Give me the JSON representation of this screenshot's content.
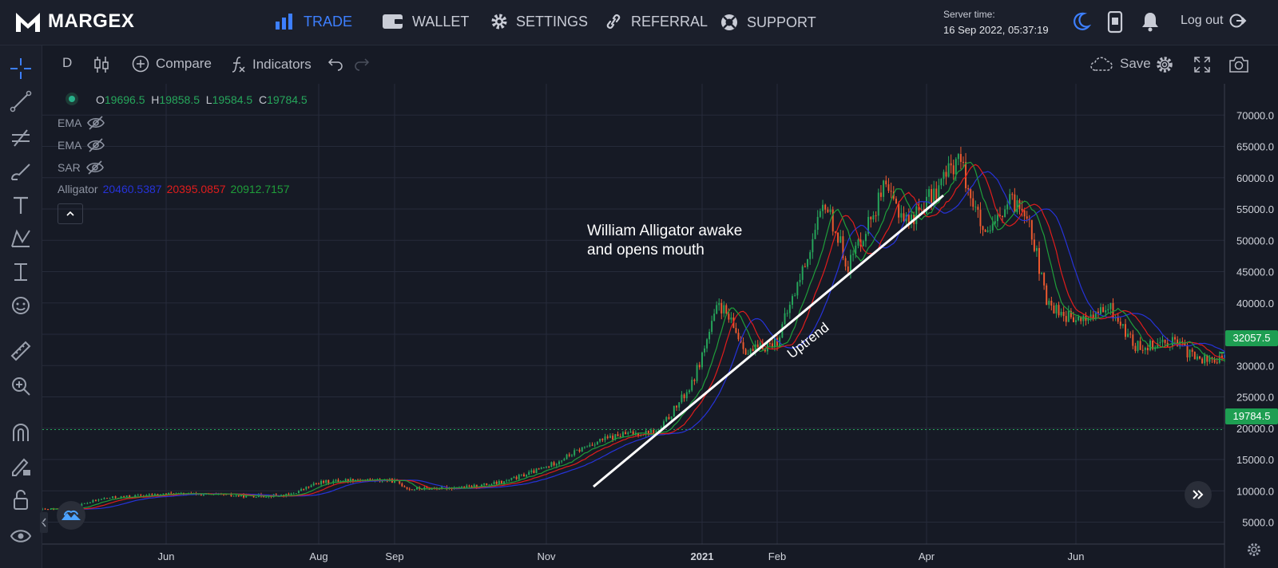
{
  "app": {
    "brand": "MARGEX"
  },
  "nav": [
    {
      "label": "TRADE",
      "icon": "bar-chart-icon",
      "active": true
    },
    {
      "label": "WALLET",
      "icon": "wallet-icon"
    },
    {
      "label": "SETTINGS",
      "icon": "gear-icon"
    },
    {
      "label": "REFERRAL",
      "icon": "link-icon"
    },
    {
      "label": "SUPPORT",
      "icon": "lifebuoy-icon"
    }
  ],
  "server": {
    "label": "Server time:",
    "time": "16 Sep 2022, 05:37:19"
  },
  "topbar_icons": [
    "moon-icon",
    "phone-icon",
    "bell-icon"
  ],
  "logout_label": "Log out",
  "toolbar": {
    "interval": "D",
    "compare": "Compare",
    "indicators": "Indicators",
    "save": "Save"
  },
  "left_tools": [
    "crosshair-icon",
    "trend-line-icon",
    "fib-icon",
    "brush-icon",
    "text-icon",
    "pattern-icon",
    "measure-icon",
    "emoji-icon",
    "ruler-icon",
    "zoom-in-icon",
    "magnet-icon",
    "lock-pencil-icon",
    "lock-icon",
    "eye-icon"
  ],
  "legend": {
    "o_label": "O",
    "o": "19696.5",
    "h_label": "H",
    "h": "19858.5",
    "l_label": "L",
    "l": "19584.5",
    "c_label": "C",
    "c": "19784.5"
  },
  "indicators": [
    {
      "name": "EMA"
    },
    {
      "name": "EMA"
    },
    {
      "name": "SAR"
    },
    {
      "name": "Alligator",
      "values": [
        "20460.5387",
        "20395.0857",
        "20912.7157"
      ]
    }
  ],
  "annotations": {
    "alligator": [
      "William Alligator awake",
      "and opens mouth"
    ],
    "trend": "Uptrend"
  },
  "colors": {
    "up": "#26a65b",
    "down": "#ef5a2f",
    "jaw": "#2633d9",
    "teeth": "#e01c1c",
    "lips": "#1f9e3a",
    "accent": "#3d7fff",
    "price_tag": "#1e9e52"
  },
  "chart_data": {
    "type": "candlestick",
    "x_labels": [
      "Jun",
      "Aug",
      "Sep",
      "Nov",
      "2021",
      "Feb",
      "Apr",
      "Jun"
    ],
    "y_ticks": [
      5000,
      10000,
      15000,
      20000,
      25000,
      30000,
      35000,
      40000,
      45000,
      50000,
      55000,
      60000,
      65000,
      70000
    ],
    "ylim": [
      1500,
      75000
    ],
    "price_labels": [
      "32057.5",
      "19784.5"
    ],
    "last_price": 19784.5,
    "close_trend": [
      [
        "2020-04-25",
        7000
      ],
      [
        "2020-05-10",
        8800
      ],
      [
        "2020-06-01",
        9500
      ],
      [
        "2020-06-15",
        9450
      ],
      [
        "2020-07-01",
        9200
      ],
      [
        "2020-07-20",
        9300
      ],
      [
        "2020-08-01",
        11300
      ],
      [
        "2020-08-15",
        11800
      ],
      [
        "2020-09-01",
        11600
      ],
      [
        "2020-09-07",
        10300
      ],
      [
        "2020-10-01",
        10600
      ],
      [
        "2020-10-15",
        11400
      ],
      [
        "2020-11-01",
        13800
      ],
      [
        "2020-11-20",
        17800
      ],
      [
        "2020-12-01",
        19000
      ],
      [
        "2020-12-15",
        19500
      ],
      [
        "2020-12-28",
        27000
      ],
      [
        "2021-01-08",
        40000
      ],
      [
        "2021-01-20",
        32000
      ],
      [
        "2021-02-01",
        34000
      ],
      [
        "2021-02-10",
        44000
      ],
      [
        "2021-02-20",
        56000
      ],
      [
        "2021-03-01",
        46000
      ],
      [
        "2021-03-15",
        58000
      ],
      [
        "2021-03-25",
        53000
      ],
      [
        "2021-04-05",
        58000
      ],
      [
        "2021-04-14",
        63500
      ],
      [
        "2021-04-25",
        50000
      ],
      [
        "2021-05-05",
        56000
      ],
      [
        "2021-05-12",
        55000
      ],
      [
        "2021-05-20",
        40000
      ],
      [
        "2021-06-01",
        37000
      ],
      [
        "2021-06-15",
        39000
      ],
      [
        "2021-06-25",
        33000
      ],
      [
        "2021-07-10",
        34000
      ],
      [
        "2021-07-20",
        31000
      ]
    ]
  }
}
